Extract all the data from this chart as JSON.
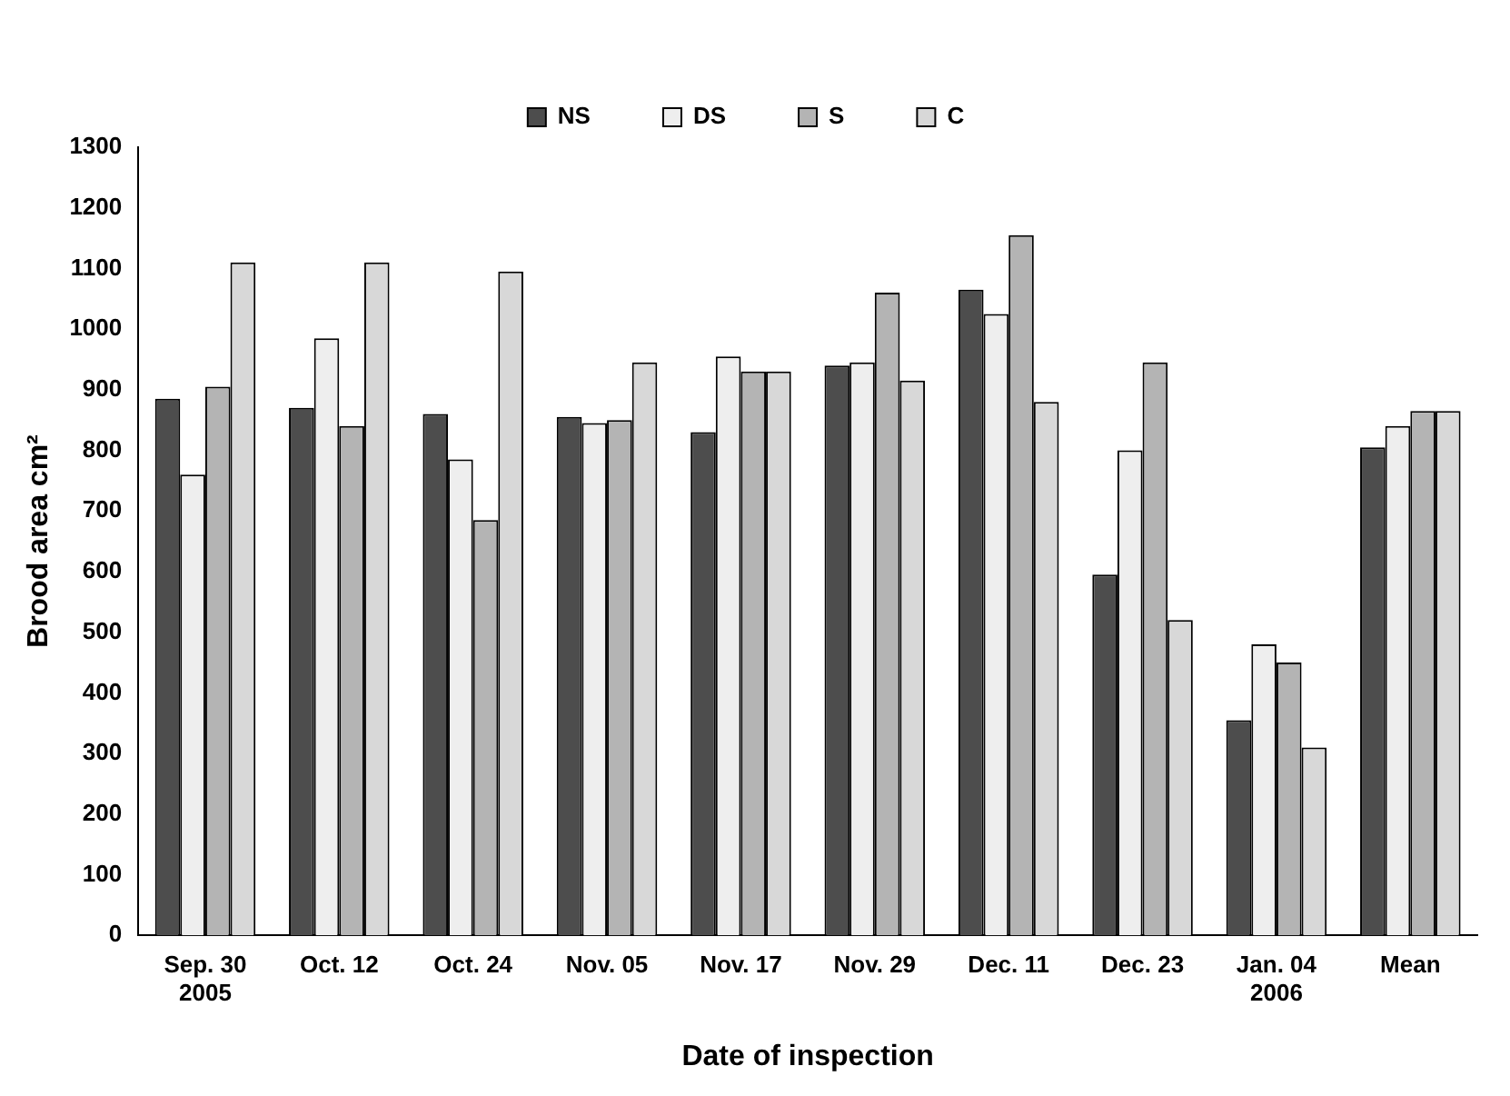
{
  "chart_data": {
    "type": "bar",
    "xlabel": "Date of inspection",
    "ylabel": "Brood area cm²",
    "categories": [
      "Sep. 30\n2005",
      "Oct. 12",
      "Oct. 24",
      "Nov. 05",
      "Nov. 17",
      "Nov. 29",
      "Dec. 11",
      "Dec. 23",
      "Jan. 04\n2006",
      "Mean"
    ],
    "series": [
      {
        "name": "NS",
        "color": "#4d4d4d",
        "values": [
          885,
          870,
          860,
          855,
          830,
          940,
          1065,
          595,
          355,
          805
        ]
      },
      {
        "name": "DS",
        "color": "#eeeeee",
        "values": [
          760,
          985,
          785,
          845,
          955,
          945,
          1025,
          800,
          480,
          840
        ]
      },
      {
        "name": "S",
        "color": "#b4b4b4",
        "values": [
          905,
          840,
          685,
          850,
          930,
          1060,
          1155,
          945,
          450,
          865
        ]
      },
      {
        "name": "C",
        "color": "#d8d8d8",
        "values": [
          1110,
          1110,
          1095,
          945,
          930,
          915,
          880,
          520,
          310,
          865
        ]
      }
    ],
    "ylim": [
      0,
      1300
    ],
    "yticks": [
      0,
      100,
      200,
      300,
      400,
      500,
      600,
      700,
      800,
      900,
      1000,
      1100,
      1200,
      1300
    ],
    "grid": false,
    "legend": "top"
  }
}
